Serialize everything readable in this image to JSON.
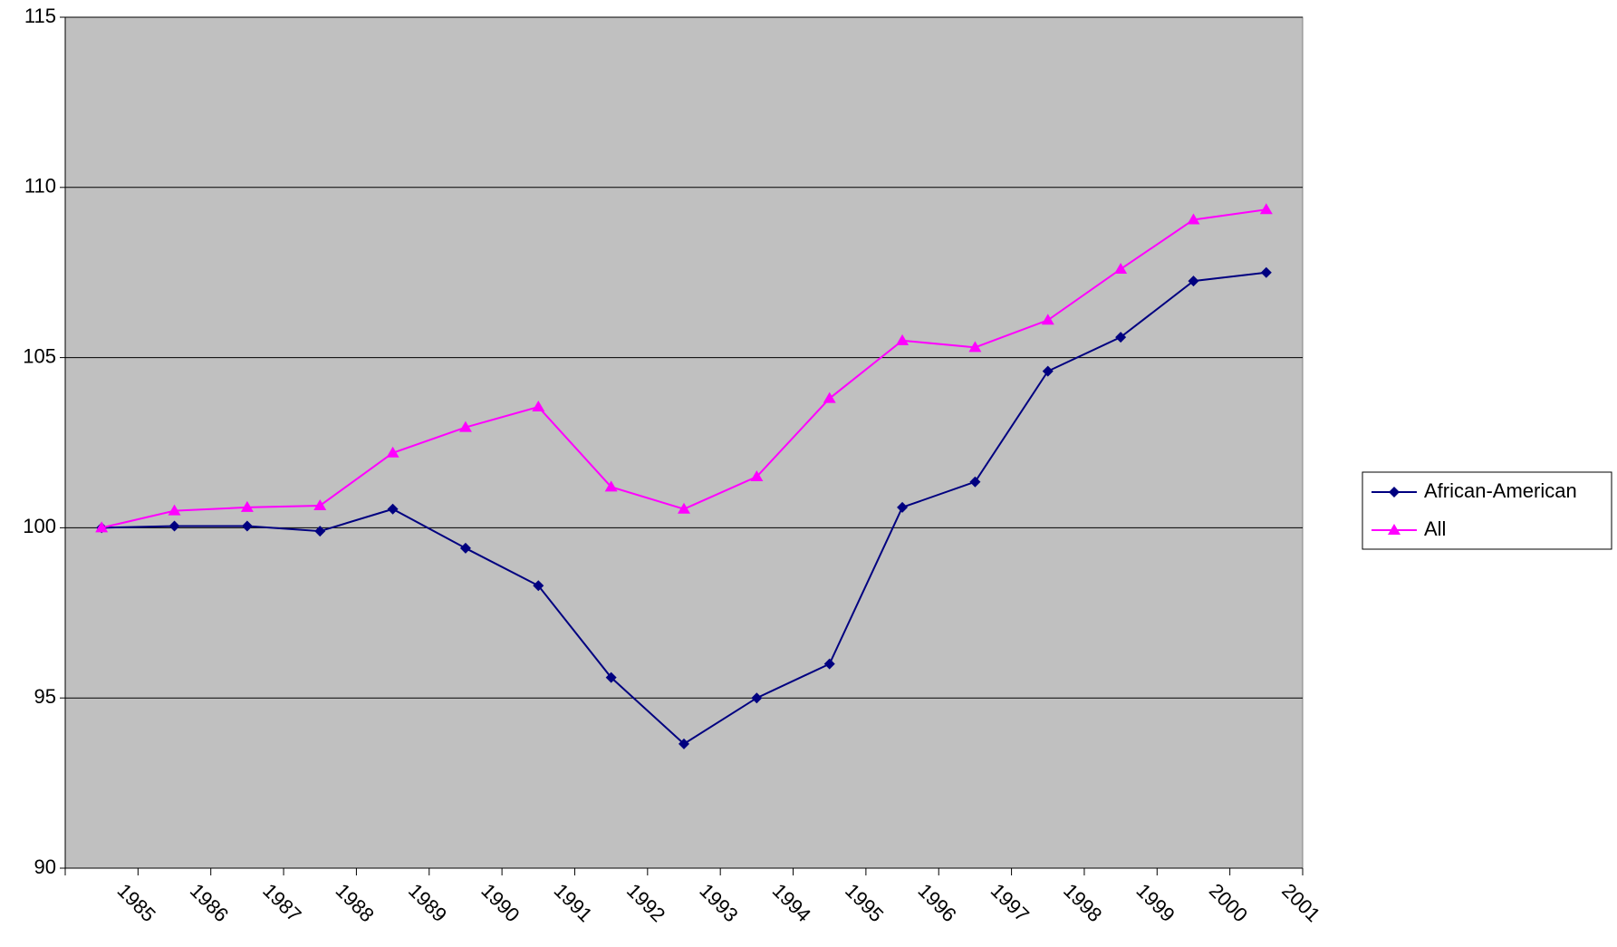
{
  "chart_data": {
    "type": "line",
    "categories": [
      "1985",
      "1986",
      "1987",
      "1988",
      "1989",
      "1990",
      "1991",
      "1992",
      "1993",
      "1994",
      "1995",
      "1996",
      "1997",
      "1998",
      "1999",
      "2000",
      "2001"
    ],
    "series": [
      {
        "name": "African-American",
        "color": "#000080",
        "marker": "diamond",
        "values": [
          100,
          100.05,
          100.05,
          99.9,
          100.55,
          99.4,
          98.3,
          95.6,
          93.65,
          95.0,
          96.0,
          100.6,
          101.35,
          104.6,
          105.6,
          107.25,
          107.5
        ]
      },
      {
        "name": "All",
        "color": "#ff00ff",
        "marker": "triangle",
        "values": [
          100,
          100.5,
          100.6,
          100.65,
          102.2,
          102.95,
          103.55,
          101.2,
          100.55,
          101.5,
          103.8,
          105.5,
          105.3,
          106.1,
          107.6,
          109.05,
          109.35
        ]
      }
    ],
    "ylim": [
      90,
      115
    ],
    "yticks": [
      90,
      95,
      100,
      105,
      110,
      115
    ],
    "grid": true,
    "legend": "right"
  }
}
